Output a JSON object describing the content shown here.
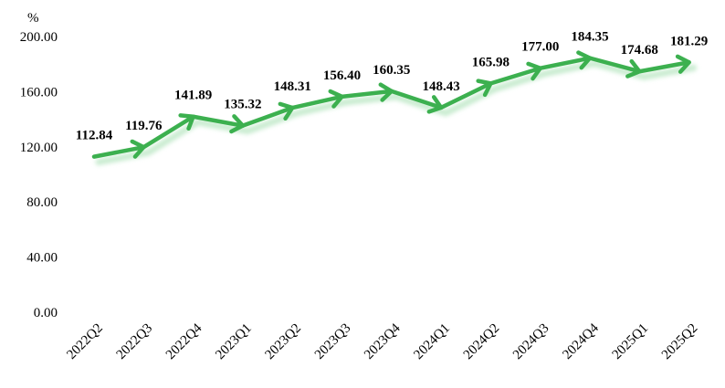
{
  "chart_data": {
    "type": "line",
    "y_unit": "%",
    "categories": [
      "2022Q2",
      "2022Q3",
      "2022Q4",
      "2023Q1",
      "2023Q2",
      "2023Q3",
      "2023Q4",
      "2024Q1",
      "2024Q2",
      "2024Q3",
      "2024Q4",
      "2025Q1",
      "2025Q2"
    ],
    "series": [
      {
        "values": [
          112.84,
          119.76,
          141.89,
          135.32,
          148.31,
          156.4,
          160.35,
          148.43,
          165.98,
          177.0,
          184.35,
          174.68,
          181.29
        ],
        "labels": [
          "112.84",
          "119.76",
          "141.89",
          "135.32",
          "148.31",
          "156.40",
          "160.35",
          "148.43",
          "165.98",
          "177.00",
          "184.35",
          "174.68",
          "181.29"
        ],
        "color": "#3cb04f"
      }
    ],
    "ylim": [
      0,
      200
    ],
    "yticks": [
      "0.00",
      "40.00",
      "80.00",
      "120.00",
      "160.00",
      "200.00"
    ],
    "grid": false,
    "legend": "none"
  }
}
